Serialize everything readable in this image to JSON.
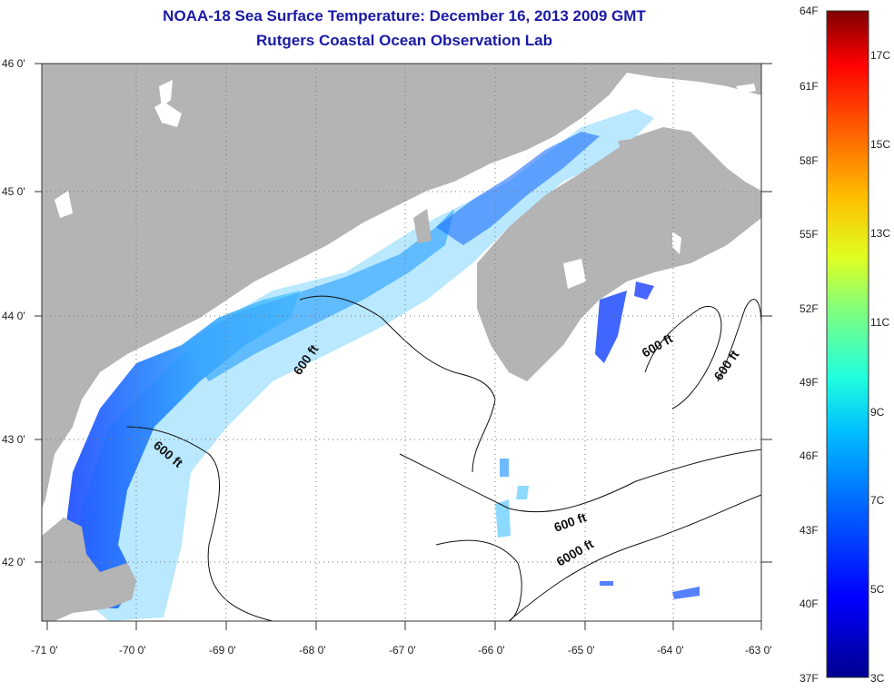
{
  "title": {
    "line1": "NOAA-18 Sea Surface Temperature:  December 16, 2013 2009 GMT",
    "line2": "Rutgers Coastal Ocean Observation Lab"
  },
  "map": {
    "lat_labels": [
      "46 0'",
      "45 0'",
      "44 0'",
      "43 0'",
      "42 0'"
    ],
    "lon_labels": [
      "-71 0'",
      "-70 0'",
      "-69 0'",
      "-68 0'",
      "-67 0'",
      "-66 0'",
      "-65 0'",
      "-64 0'",
      "-63 0'"
    ],
    "contour_labels": [
      "600 ft",
      "600 ft",
      "600 ft",
      "600 ft",
      "600 ft",
      "6000 ft"
    ]
  },
  "colorbar": {
    "fahrenheit_labels": [
      "64F",
      "61F",
      "58F",
      "55F",
      "52F",
      "49F",
      "46F",
      "43F",
      "40F",
      "37F"
    ],
    "celsius_labels": [
      "17C",
      "15C",
      "13C",
      "11C",
      "9C",
      "7C",
      "5C",
      "3C"
    ]
  },
  "colors": {
    "land": "#b4b4b4",
    "ocean_missing": "#ffffff",
    "title": "#1a1aa6",
    "sst_low": "#0000a0",
    "sst_high": "#800000"
  }
}
